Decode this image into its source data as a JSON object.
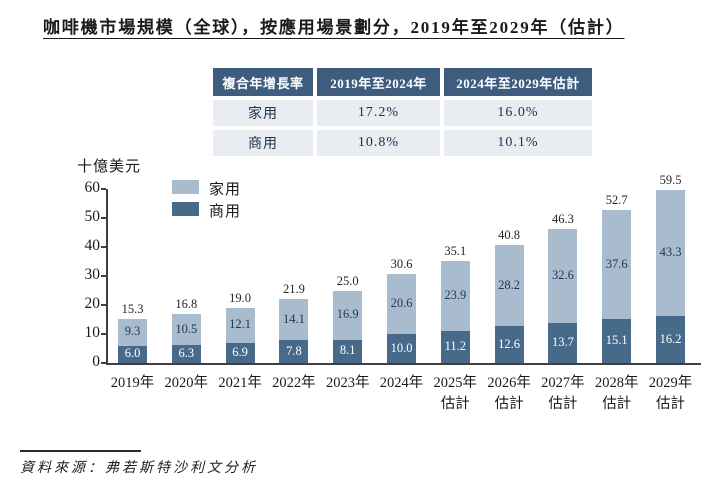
{
  "page": {
    "title": "咖啡機市場規模（全球），按應用場景劃分，2019年至2029年（估計）",
    "source": "資料來源：弗若斯特沙利文分析"
  },
  "cagr_table": {
    "header": [
      "複合年增長率",
      "2019年至2024年",
      "2024年至2029年估計"
    ],
    "rows": [
      {
        "label": "家用",
        "cagr_2019_2024": "17.2%",
        "cagr_2024_2029": "16.0%"
      },
      {
        "label": "商用",
        "cagr_2019_2024": "10.8%",
        "cagr_2024_2029": "10.1%"
      }
    ]
  },
  "chart_data": {
    "type": "bar",
    "stacked": true,
    "title": "咖啡機市場規模（全球），按應用場景劃分，2019年至2029年（估計）",
    "ylabel": "十億美元",
    "ylim": [
      0,
      60
    ],
    "yticks": [
      0,
      10,
      20,
      30,
      40,
      50,
      60
    ],
    "grid": false,
    "legend_position": "top-left-inside",
    "categories": [
      {
        "label": "2019年",
        "sublabel": ""
      },
      {
        "label": "2020年",
        "sublabel": ""
      },
      {
        "label": "2021年",
        "sublabel": ""
      },
      {
        "label": "2022年",
        "sublabel": ""
      },
      {
        "label": "2023年",
        "sublabel": ""
      },
      {
        "label": "2024年",
        "sublabel": ""
      },
      {
        "label": "2025年",
        "sublabel": "估計"
      },
      {
        "label": "2026年",
        "sublabel": "估計"
      },
      {
        "label": "2027年",
        "sublabel": "估計"
      },
      {
        "label": "2028年",
        "sublabel": "估計"
      },
      {
        "label": "2029年",
        "sublabel": "估計"
      }
    ],
    "series": [
      {
        "name": "家用",
        "color": "#a8bccd",
        "values": [
          9.3,
          10.5,
          12.1,
          14.1,
          16.9,
          20.6,
          23.9,
          28.2,
          32.6,
          37.6,
          43.3
        ]
      },
      {
        "name": "商用",
        "color": "#476a8b",
        "values": [
          6.0,
          6.3,
          6.9,
          7.8,
          8.1,
          10.0,
          11.2,
          12.6,
          13.7,
          15.1,
          16.2
        ]
      }
    ],
    "totals": [
      15.3,
      16.8,
      19.0,
      21.9,
      25.0,
      30.6,
      35.1,
      40.8,
      46.3,
      52.7,
      59.5
    ]
  },
  "colors": {
    "table_header_bg": "#3e5c7e",
    "table_row_bg": "#e9edf1",
    "bar_home": "#a8bccd",
    "bar_commercial": "#476a8b",
    "axis": "#3f3f3f",
    "label_on_light": "#1f355e",
    "label_on_dark": "#ffffff",
    "total_label": "#262626"
  }
}
